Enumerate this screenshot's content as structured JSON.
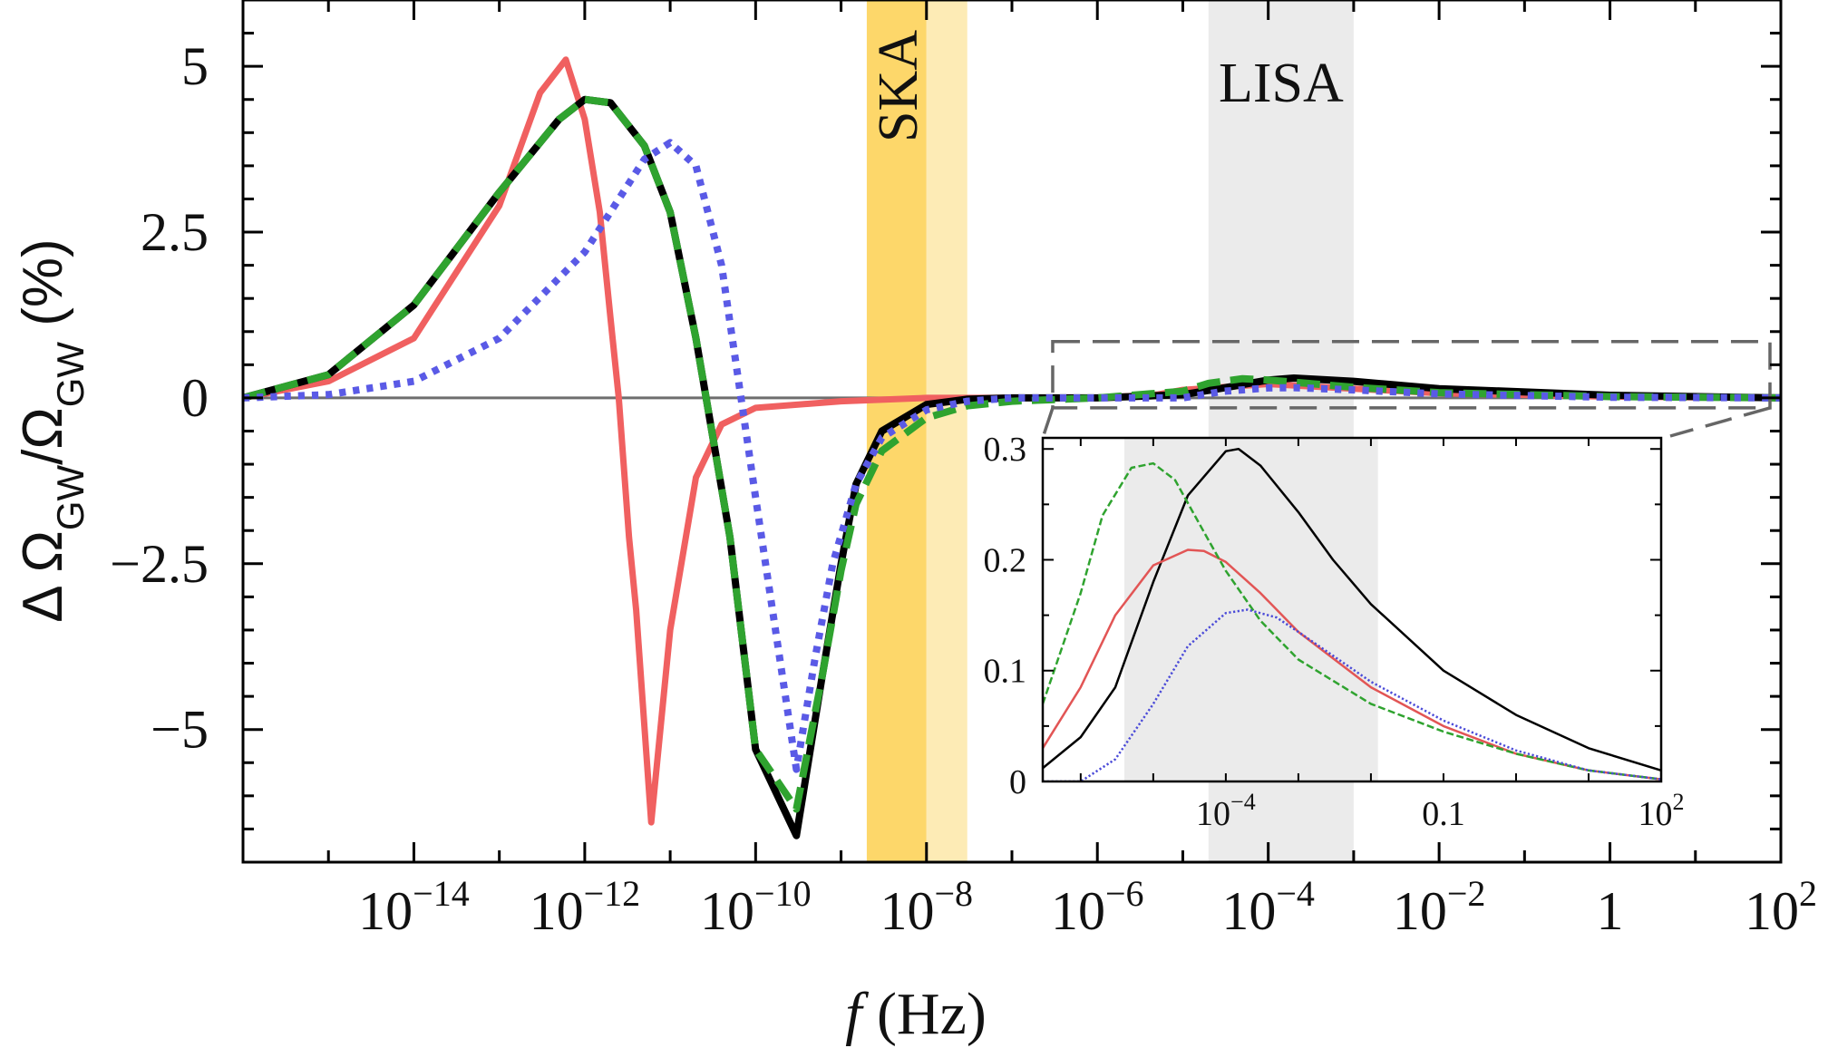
{
  "chart_data": [
    {
      "type": "line",
      "xscale": "log",
      "xlim": [
        1e-16,
        100
      ],
      "ylim": [
        -7,
        6
      ],
      "xlabel_italic": "f",
      "xlabel_rest": " (Hz)",
      "ylabel_prefix": "Δ Ω",
      "ylabel_sub1": "GW",
      "ylabel_mid": "/Ω",
      "ylabel_sub2": "GW",
      "ylabel_suffix": " (%)",
      "x_ticks": [
        {
          "value": 1e-14,
          "base": "10",
          "exp": "−14"
        },
        {
          "value": 1e-12,
          "base": "10",
          "exp": "−12"
        },
        {
          "value": 1e-10,
          "base": "10",
          "exp": "−10"
        },
        {
          "value": 1e-08,
          "base": "10",
          "exp": "−8"
        },
        {
          "value": 1e-06,
          "base": "10",
          "exp": "−6"
        },
        {
          "value": 0.0001,
          "base": "10",
          "exp": "−4"
        },
        {
          "value": 0.01,
          "base": "10",
          "exp": "−2"
        },
        {
          "value": 1,
          "base": "1",
          "exp": ""
        },
        {
          "value": 100,
          "base": "10",
          "exp": "2"
        }
      ],
      "y_ticks": [
        {
          "value": 5,
          "label": "5"
        },
        {
          "value": 2.5,
          "label": "2.5"
        },
        {
          "value": 0,
          "label": "0"
        },
        {
          "value": -2.5,
          "label": "−2.5"
        },
        {
          "value": -5,
          "label": "−5"
        }
      ],
      "bands": [
        {
          "label": "SKA",
          "from": 2e-09,
          "to": 1e-08,
          "color": "#fdd76a"
        },
        {
          "label": "",
          "from": 1e-08,
          "to": 3e-08,
          "color": "#fdebb5"
        },
        {
          "label": "LISA",
          "from": 2e-05,
          "to": 0.001,
          "color": "#ebebeb"
        }
      ],
      "zero_line": {
        "value": 0,
        "color": "#6e6e6e"
      },
      "series": [
        {
          "color": "#f06060",
          "style": "solid",
          "width": 7,
          "x": [
            1e-16,
            1e-15,
            1e-14,
            1e-13,
            3e-13,
            6e-13,
            1e-12,
            1.5e-12,
            2e-12,
            2.5e-12,
            3.3e-12,
            4e-12,
            6e-12,
            1e-11,
            2e-11,
            4e-11,
            1e-10,
            1e-09,
            1e-08,
            1e-06,
            5e-06,
            1e-05,
            0.0001,
            0.001,
            0.01,
            1,
            100
          ],
          "y": [
            0,
            0.25,
            0.9,
            2.9,
            4.6,
            5.1,
            4.2,
            2.8,
            1.2,
            0,
            -2.1,
            -3.2,
            -6.4,
            -3.5,
            -1.2,
            -0.4,
            -0.15,
            -0.05,
            0,
            0,
            0.05,
            0.12,
            0.21,
            0.14,
            0.07,
            0.02,
            0
          ]
        },
        {
          "color": "#000000",
          "style": "solid",
          "width": 8,
          "x": [
            1e-16,
            1e-15,
            1e-14,
            1e-13,
            5e-13,
            1e-12,
            2e-12,
            5e-12,
            1e-11,
            2e-11,
            5e-11,
            1e-10,
            3e-10,
            6e-10,
            1e-09,
            1.5e-09,
            3e-09,
            1e-08,
            3e-08,
            1e-07,
            1e-06,
            1e-05,
            3e-05,
            0.0001,
            0.0002,
            0.001,
            0.01,
            1,
            100
          ],
          "y": [
            0,
            0.35,
            1.4,
            3.1,
            4.2,
            4.5,
            4.45,
            3.8,
            2.8,
            0.9,
            -2.1,
            -5.3,
            -6.6,
            -4.2,
            -2.5,
            -1.3,
            -0.5,
            -0.1,
            -0.02,
            0,
            0,
            0.05,
            0.15,
            0.27,
            0.3,
            0.25,
            0.14,
            0.04,
            0
          ]
        },
        {
          "color": "#2fa32f",
          "style": "dash",
          "width": 8,
          "x": [
            1e-16,
            1e-15,
            1e-14,
            1e-13,
            5e-13,
            1e-12,
            2e-12,
            5e-12,
            1e-11,
            2e-11,
            5e-11,
            1e-10,
            3e-10,
            6e-10,
            1e-09,
            1.5e-09,
            3e-09,
            1e-08,
            3e-08,
            1e-07,
            1e-06,
            1e-05,
            2e-05,
            5e-05,
            0.0001,
            0.001,
            0.01,
            1,
            100
          ],
          "y": [
            0,
            0.35,
            1.4,
            3.1,
            4.2,
            4.5,
            4.45,
            3.8,
            2.8,
            0.9,
            -2.1,
            -5.3,
            -6.2,
            -4.2,
            -2.6,
            -1.6,
            -0.8,
            -0.3,
            -0.12,
            -0.05,
            0,
            0.1,
            0.22,
            0.29,
            0.27,
            0.16,
            0.08,
            0.02,
            0
          ]
        },
        {
          "color": "#5a5ae6",
          "style": "dot",
          "width": 8,
          "x": [
            1e-16,
            1e-15,
            1e-14,
            1e-13,
            1e-12,
            5e-12,
            1e-11,
            2e-11,
            4e-11,
            1e-10,
            3e-10,
            5e-10,
            8e-10,
            1.5e-09,
            3e-09,
            1e-08,
            3e-08,
            1e-07,
            1e-06,
            1e-05,
            3e-05,
            0.0001,
            0.0002,
            0.001,
            0.01,
            1,
            100
          ],
          "y": [
            0,
            0.05,
            0.25,
            0.9,
            2.2,
            3.6,
            3.85,
            3.5,
            2.0,
            -1.5,
            -5.6,
            -3.9,
            -2.5,
            -1.3,
            -0.6,
            -0.18,
            -0.05,
            0,
            0,
            0,
            0.1,
            0.15,
            0.155,
            0.12,
            0.06,
            0.01,
            0
          ]
        }
      ],
      "inset_marker": {
        "x_from": 3e-07,
        "x_to": 100,
        "y_from": -0.15,
        "y_to": 0.85
      }
    },
    {
      "type": "line",
      "role": "inset",
      "xscale": "log",
      "xlim": [
        3e-07,
        100
      ],
      "ylim": [
        0,
        0.31
      ],
      "x_ticks": [
        {
          "value": 0.0001,
          "base": "10",
          "exp": "−4"
        },
        {
          "value": 0.1,
          "base": "0.1",
          "exp": ""
        },
        {
          "value": 100,
          "base": "10",
          "exp": "2"
        }
      ],
      "y_ticks": [
        {
          "value": 0.3,
          "label": "0.3"
        },
        {
          "value": 0.2,
          "label": "0.2"
        },
        {
          "value": 0.1,
          "label": "0.1"
        },
        {
          "value": 0,
          "label": "0"
        }
      ],
      "bands": [
        {
          "label": "",
          "from": 4e-06,
          "to": 0.0125,
          "color": "#ebebeb"
        }
      ],
      "series": [
        {
          "color": "#000000",
          "style": "solid",
          "width": 2.5,
          "x": [
            3e-07,
            1e-06,
            3e-06,
            1e-05,
            3e-05,
            0.0001,
            0.00015,
            0.0003,
            0.001,
            0.003,
            0.01,
            0.1,
            1,
            10,
            100
          ],
          "y": [
            0.012,
            0.04,
            0.085,
            0.18,
            0.258,
            0.298,
            0.3,
            0.285,
            0.243,
            0.2,
            0.16,
            0.1,
            0.06,
            0.03,
            0.01
          ]
        },
        {
          "color": "#e25555",
          "style": "solid",
          "width": 2.5,
          "x": [
            3e-07,
            1e-06,
            3e-06,
            1e-05,
            3e-05,
            5e-05,
            0.0001,
            0.0003,
            0.001,
            0.01,
            0.1,
            1,
            10,
            100
          ],
          "y": [
            0.03,
            0.085,
            0.15,
            0.195,
            0.209,
            0.208,
            0.198,
            0.17,
            0.135,
            0.085,
            0.05,
            0.025,
            0.01,
            0.002
          ]
        },
        {
          "color": "#2fa32f",
          "style": "dash",
          "width": 2.5,
          "x": [
            3e-07,
            1e-06,
            2e-06,
            5e-06,
            1e-05,
            2e-05,
            5e-05,
            0.0001,
            0.0003,
            0.001,
            0.01,
            0.1,
            1,
            10,
            100
          ],
          "y": [
            0.07,
            0.17,
            0.24,
            0.283,
            0.287,
            0.272,
            0.225,
            0.19,
            0.145,
            0.11,
            0.07,
            0.045,
            0.025,
            0.01,
            0.002
          ]
        },
        {
          "color": "#4b4bd8",
          "style": "dot",
          "width": 2.5,
          "x": [
            3e-07,
            1e-06,
            3e-06,
            1e-05,
            3e-05,
            0.0001,
            0.0002,
            0.0005,
            0.001,
            0.01,
            0.1,
            1,
            10,
            100
          ],
          "y": [
            0,
            0,
            0.02,
            0.07,
            0.122,
            0.152,
            0.155,
            0.148,
            0.135,
            0.09,
            0.055,
            0.028,
            0.01,
            0.002
          ]
        }
      ]
    }
  ]
}
